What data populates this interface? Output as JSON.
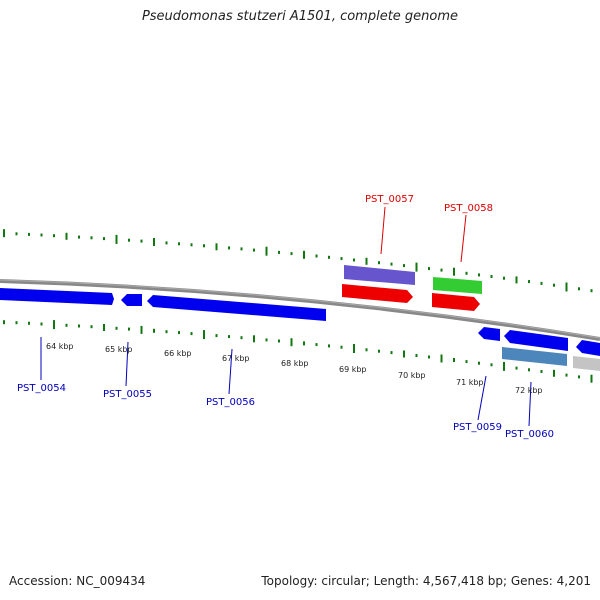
{
  "title": "Pseudomonas stutzeri A1501, complete genome",
  "footer": {
    "accession": "Accession: NC_009434",
    "topology": "Topology: circular; Length: 4,567,418 bp; Genes: 4,201"
  },
  "colors": {
    "forward_cds": "#0000ee",
    "reverse_cds": "#ee0000",
    "rrna": "#6655cc",
    "trna": "#33cc33",
    "steelblue_gene": "#4d86bb",
    "gray_gene": "#c4c4c4",
    "backbone": "#888888",
    "gc_ticks": "#117711",
    "forward_label": "#0000bb",
    "reverse_label": "#dd0000"
  },
  "scale_ticks": [
    "64 kbp",
    "65 kbp",
    "66 kbp",
    "67 kbp",
    "68 kbp",
    "69 kbp",
    "70 kbp",
    "71 kbp",
    "72 kbp"
  ],
  "genes": [
    {
      "label": "PST_0054",
      "strand": "forward"
    },
    {
      "label": "PST_0055",
      "strand": "forward"
    },
    {
      "label": "PST_0056",
      "strand": "forward"
    },
    {
      "label": "PST_0057",
      "strand": "reverse"
    },
    {
      "label": "PST_0058",
      "strand": "reverse"
    },
    {
      "label": "PST_0059",
      "strand": "forward"
    },
    {
      "label": "PST_0060",
      "strand": "forward"
    }
  ]
}
